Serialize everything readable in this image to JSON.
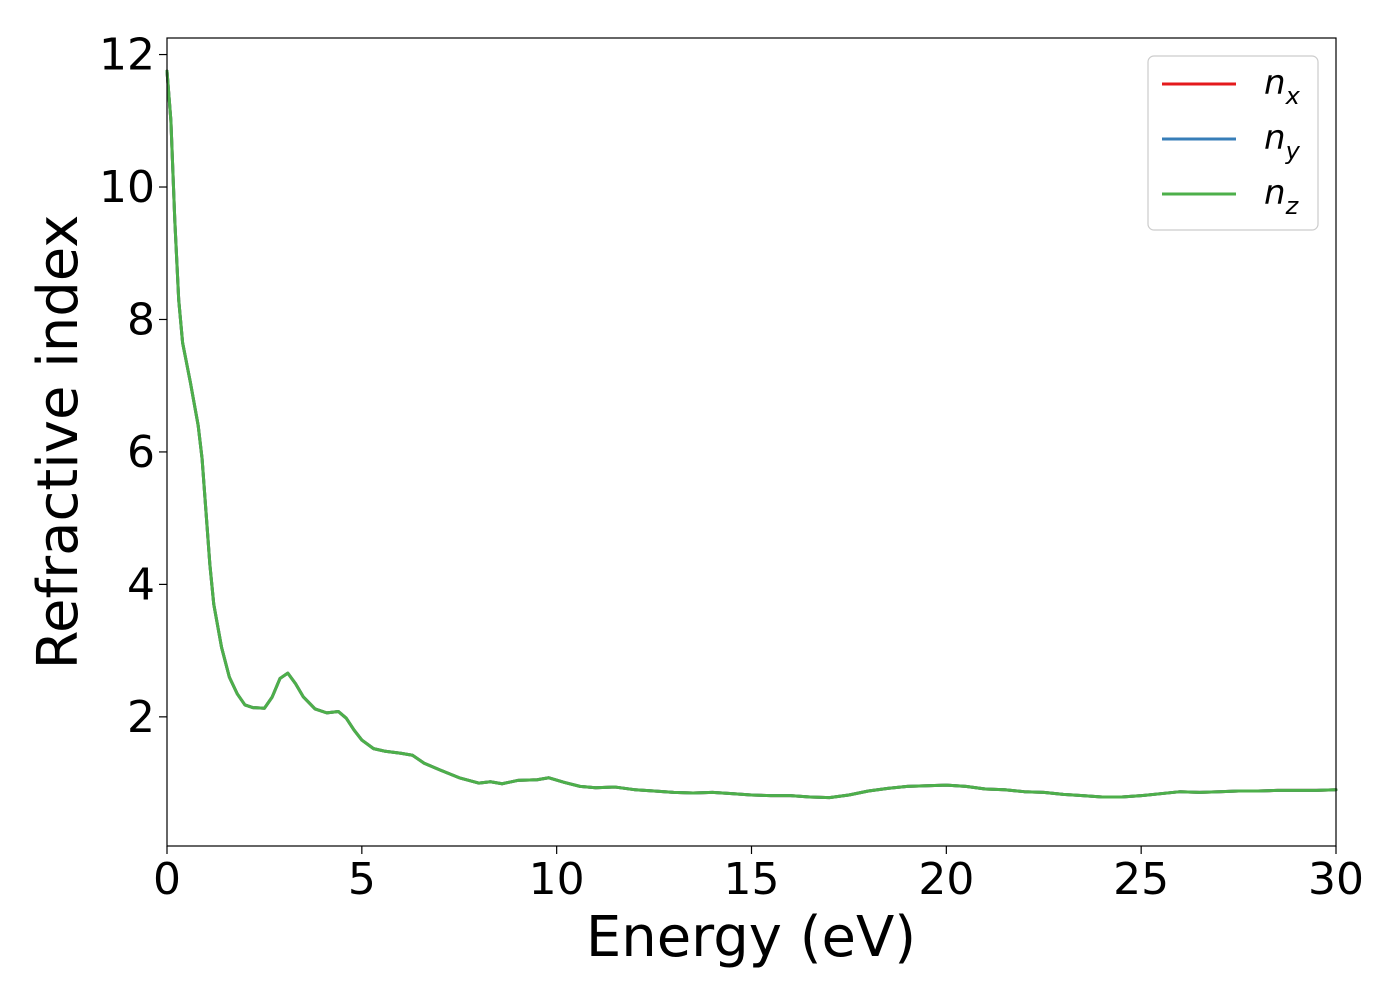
{
  "chart_data": {
    "type": "line",
    "title": "",
    "xlabel": "Energy (eV)",
    "ylabel": "Refractive index",
    "xlim": [
      0,
      30
    ],
    "ylim": [
      0.05,
      12.25
    ],
    "xticks": [
      0,
      5,
      10,
      15,
      20,
      25,
      30
    ],
    "xtick_labels": [
      "0",
      "5",
      "10",
      "15",
      "20",
      "25",
      "30"
    ],
    "yticks": [
      2,
      4,
      6,
      8,
      10,
      12
    ],
    "ytick_labels": [
      "2",
      "4",
      "6",
      "8",
      "10",
      "12"
    ],
    "grid": false,
    "legend_position": "top-right",
    "legend": [
      {
        "base": "n",
        "sub": "x",
        "color": "#e41a1c"
      },
      {
        "base": "n",
        "sub": "y",
        "color": "#377eb8"
      },
      {
        "base": "n",
        "sub": "z",
        "color": "#4daf4a"
      }
    ],
    "x": [
      0,
      0.1,
      0.2,
      0.3,
      0.4,
      0.5,
      0.6,
      0.8,
      0.9,
      1.0,
      1.1,
      1.2,
      1.4,
      1.6,
      1.8,
      2.0,
      2.2,
      2.5,
      2.7,
      2.9,
      3.1,
      3.3,
      3.5,
      3.8,
      4.1,
      4.4,
      4.6,
      4.8,
      5.0,
      5.3,
      5.6,
      6.0,
      6.3,
      6.6,
      7.0,
      7.5,
      8.0,
      8.3,
      8.6,
      9.0,
      9.5,
      9.8,
      10.2,
      10.6,
      11.0,
      11.5,
      12.0,
      12.5,
      13.0,
      13.5,
      14.0,
      14.5,
      15.0,
      15.5,
      16.0,
      16.5,
      17.0,
      17.5,
      18.0,
      18.5,
      19.0,
      19.5,
      20.0,
      20.5,
      21.0,
      21.5,
      22.0,
      22.5,
      23.0,
      23.5,
      24.0,
      24.5,
      25.0,
      25.5,
      26.0,
      26.5,
      27.0,
      27.5,
      28.0,
      28.5,
      29.0,
      29.5,
      30.0
    ],
    "series": [
      {
        "name": "n_x",
        "color": "#e41a1c",
        "values": [
          11.75,
          11.0,
          9.5,
          8.3,
          7.65,
          7.35,
          7.05,
          6.4,
          5.9,
          5.1,
          4.3,
          3.7,
          3.05,
          2.6,
          2.35,
          2.18,
          2.14,
          2.13,
          2.3,
          2.58,
          2.66,
          2.5,
          2.3,
          2.12,
          2.06,
          2.08,
          1.98,
          1.8,
          1.65,
          1.52,
          1.48,
          1.45,
          1.42,
          1.3,
          1.2,
          1.08,
          1.0,
          1.02,
          0.99,
          1.04,
          1.05,
          1.08,
          1.01,
          0.95,
          0.93,
          0.94,
          0.9,
          0.88,
          0.86,
          0.85,
          0.86,
          0.84,
          0.82,
          0.81,
          0.81,
          0.79,
          0.78,
          0.82,
          0.88,
          0.92,
          0.95,
          0.96,
          0.97,
          0.95,
          0.91,
          0.9,
          0.87,
          0.86,
          0.83,
          0.81,
          0.79,
          0.79,
          0.81,
          0.84,
          0.87,
          0.86,
          0.87,
          0.88,
          0.88,
          0.89,
          0.89,
          0.89,
          0.9
        ]
      },
      {
        "name": "n_y",
        "color": "#377eb8",
        "values": [
          11.75,
          11.0,
          9.5,
          8.3,
          7.65,
          7.35,
          7.05,
          6.4,
          5.9,
          5.1,
          4.3,
          3.7,
          3.05,
          2.6,
          2.35,
          2.18,
          2.14,
          2.13,
          2.3,
          2.58,
          2.66,
          2.5,
          2.3,
          2.12,
          2.06,
          2.08,
          1.98,
          1.8,
          1.65,
          1.52,
          1.48,
          1.45,
          1.42,
          1.3,
          1.2,
          1.08,
          1.0,
          1.02,
          0.99,
          1.04,
          1.05,
          1.08,
          1.01,
          0.95,
          0.93,
          0.94,
          0.9,
          0.88,
          0.86,
          0.85,
          0.86,
          0.84,
          0.82,
          0.81,
          0.81,
          0.79,
          0.78,
          0.82,
          0.88,
          0.92,
          0.95,
          0.96,
          0.97,
          0.95,
          0.91,
          0.9,
          0.87,
          0.86,
          0.83,
          0.81,
          0.79,
          0.79,
          0.81,
          0.84,
          0.87,
          0.86,
          0.87,
          0.88,
          0.88,
          0.89,
          0.89,
          0.89,
          0.9
        ]
      },
      {
        "name": "n_z",
        "color": "#4daf4a",
        "values": [
          11.75,
          11.0,
          9.5,
          8.3,
          7.65,
          7.35,
          7.05,
          6.4,
          5.9,
          5.1,
          4.3,
          3.7,
          3.05,
          2.6,
          2.35,
          2.18,
          2.14,
          2.13,
          2.3,
          2.58,
          2.66,
          2.5,
          2.3,
          2.12,
          2.06,
          2.08,
          1.98,
          1.8,
          1.65,
          1.52,
          1.48,
          1.45,
          1.42,
          1.3,
          1.2,
          1.08,
          1.0,
          1.02,
          0.99,
          1.04,
          1.05,
          1.08,
          1.01,
          0.95,
          0.93,
          0.94,
          0.9,
          0.88,
          0.86,
          0.85,
          0.86,
          0.84,
          0.82,
          0.81,
          0.81,
          0.79,
          0.78,
          0.82,
          0.88,
          0.92,
          0.95,
          0.96,
          0.97,
          0.95,
          0.91,
          0.9,
          0.87,
          0.86,
          0.83,
          0.81,
          0.79,
          0.79,
          0.81,
          0.84,
          0.87,
          0.86,
          0.87,
          0.88,
          0.88,
          0.89,
          0.89,
          0.89,
          0.9
        ]
      }
    ]
  }
}
